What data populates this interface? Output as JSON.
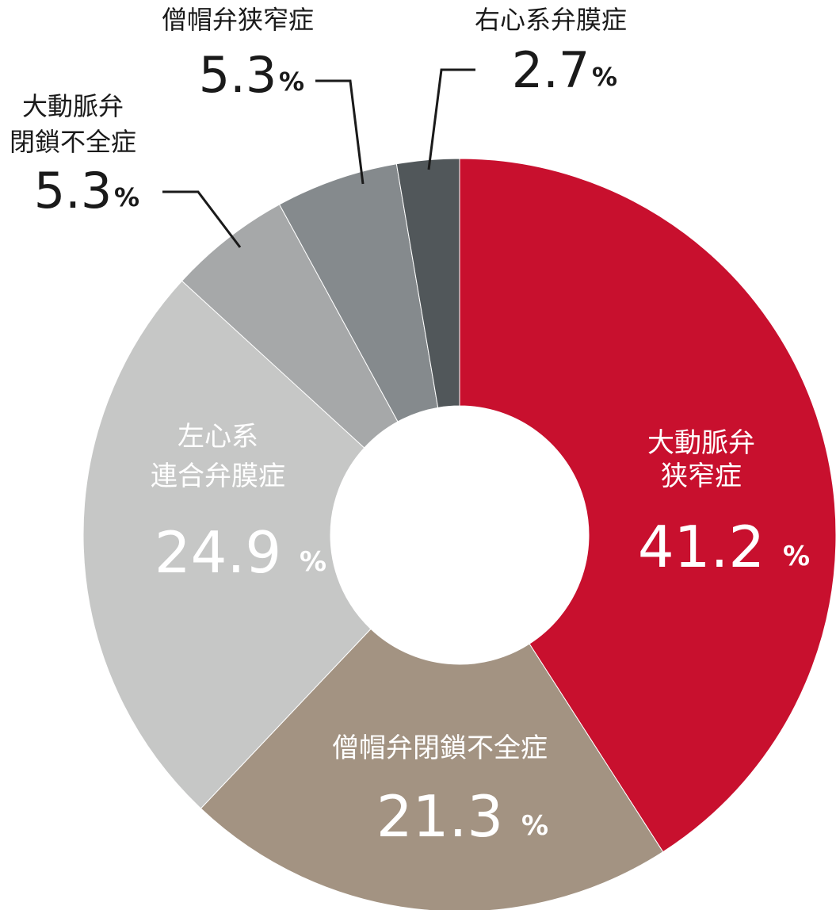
{
  "chart_data": {
    "type": "pie",
    "variant": "donut",
    "unit": "%",
    "slices": [
      {
        "name": "大動脈弁狭窄症",
        "label_lines": [
          "大動脈弁",
          "狭窄症"
        ],
        "value": 41.2,
        "value_text": "41.2",
        "color": "#c8102e"
      },
      {
        "name": "僧帽弁閉鎖不全症",
        "label_lines": [
          "僧帽弁閉鎖不全症"
        ],
        "value": 21.3,
        "value_text": "21.3",
        "color": "#a39382"
      },
      {
        "name": "左心系連合弁膜症",
        "label_lines": [
          "左心系",
          "連合弁膜症"
        ],
        "value": 24.9,
        "value_text": "24.9",
        "color": "#c6c7c6"
      },
      {
        "name": "大動脈弁閉鎖不全症",
        "label_lines": [
          "大動脈弁",
          "閉鎖不全症"
        ],
        "value": 5.3,
        "value_text": "5.3",
        "color": "#a6a8a9"
      },
      {
        "name": "僧帽弁狭窄症",
        "label_lines": [
          "僧帽弁狭窄症"
        ],
        "value": 5.3,
        "value_text": "5.3",
        "color": "#858a8d"
      },
      {
        "name": "右心系弁膜症",
        "label_lines": [
          "右心系弁膜症"
        ],
        "value": 2.7,
        "value_text": "2.7",
        "color": "#51575a"
      }
    ]
  }
}
